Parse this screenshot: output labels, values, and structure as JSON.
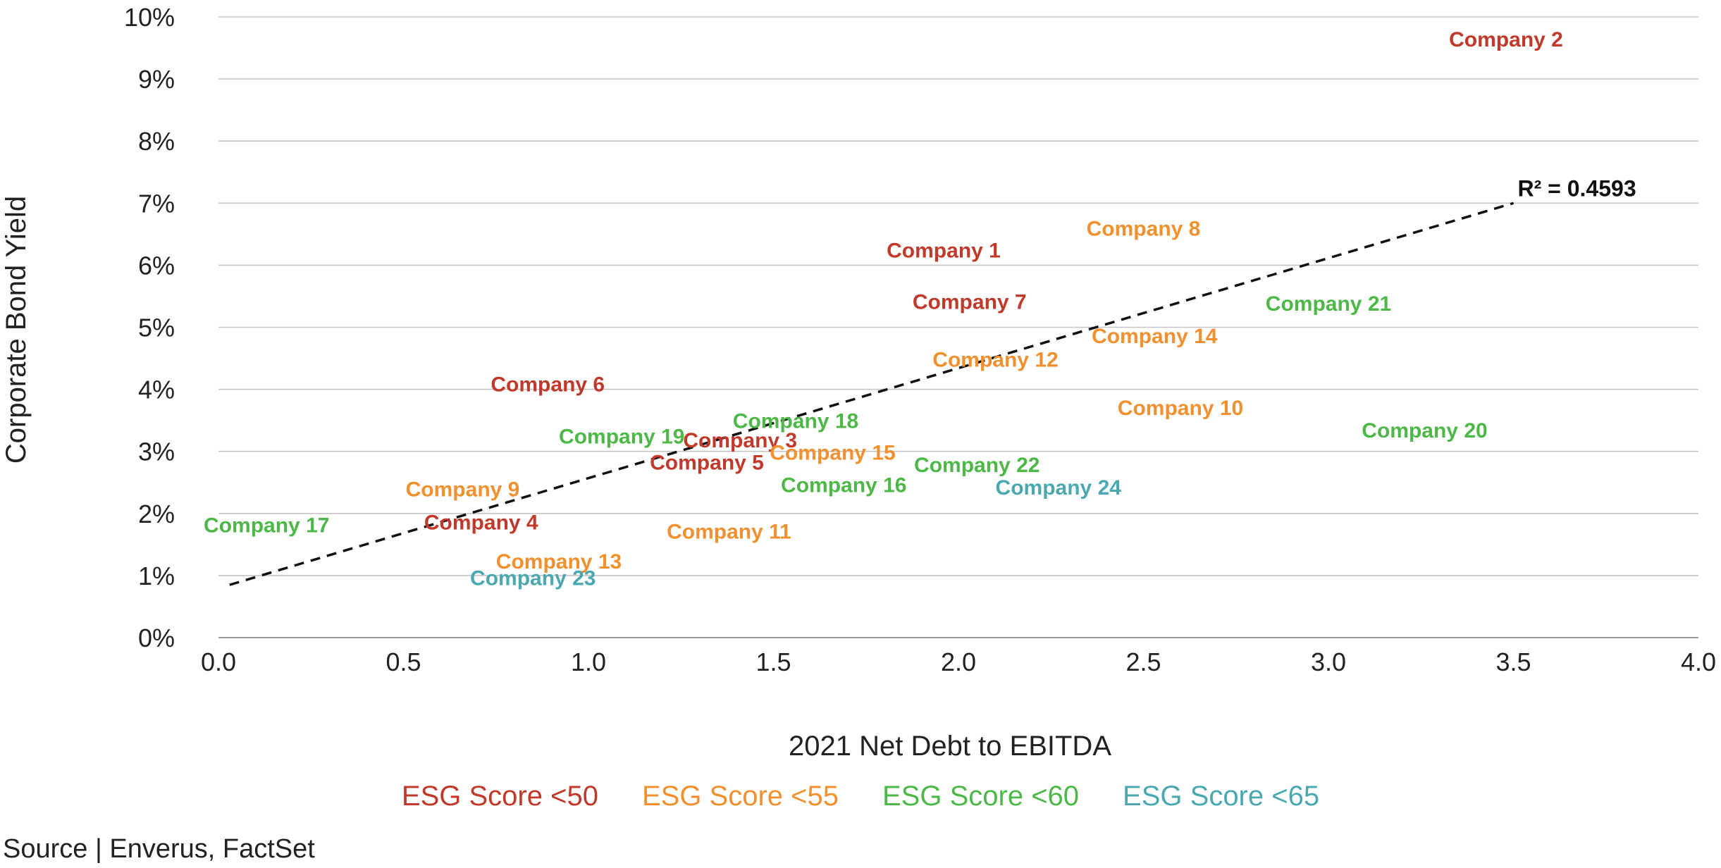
{
  "chart_data": {
    "type": "scatter",
    "xlabel": "2021 Net Debt to EBITDA",
    "ylabel": "Corporate Bond Yield",
    "xlim": [
      0,
      4
    ],
    "ylim": [
      0,
      10
    ],
    "x_ticks": [
      "0.0",
      "0.5",
      "1.0",
      "1.5",
      "2.0",
      "2.5",
      "3.0",
      "3.5",
      "4.0"
    ],
    "y_ticks": [
      "0%",
      "1%",
      "2%",
      "3%",
      "4%",
      "5%",
      "6%",
      "7%",
      "8%",
      "9%",
      "10%"
    ],
    "grid": "horizontal",
    "legend_position": "bottom-center",
    "trendline": {
      "style": "dashed",
      "x": [
        0.03,
        3.5
      ],
      "y": [
        0.85,
        7.0
      ],
      "annotation": "R² = 0.4593"
    },
    "series": [
      {
        "name": "ESG Score <50",
        "color": "#c0392b",
        "points": [
          {
            "label": "Company 2",
            "x": 3.48,
            "y": 9.65
          },
          {
            "label": "Company 1",
            "x": 1.96,
            "y": 6.25
          },
          {
            "label": "Company 7",
            "x": 2.03,
            "y": 5.42
          },
          {
            "label": "Company 6",
            "x": 0.89,
            "y": 4.09
          },
          {
            "label": "Company 3",
            "x": 1.41,
            "y": 3.19
          },
          {
            "label": "Company 5",
            "x": 1.32,
            "y": 2.83
          },
          {
            "label": "Company 4",
            "x": 0.71,
            "y": 1.87
          }
        ]
      },
      {
        "name": "ESG Score <55",
        "color": "#f0902f",
        "points": [
          {
            "label": "Company 8",
            "x": 2.5,
            "y": 6.6
          },
          {
            "label": "Company 14",
            "x": 2.53,
            "y": 4.87
          },
          {
            "label": "Company 12",
            "x": 2.1,
            "y": 4.49
          },
          {
            "label": "Company 10",
            "x": 2.6,
            "y": 3.71
          },
          {
            "label": "Company 15",
            "x": 1.66,
            "y": 2.99
          },
          {
            "label": "Company 9",
            "x": 0.66,
            "y": 2.4
          },
          {
            "label": "Company 11",
            "x": 1.38,
            "y": 1.72
          },
          {
            "label": "Company 13",
            "x": 0.92,
            "y": 1.24
          }
        ]
      },
      {
        "name": "ESG Score <60",
        "color": "#4db848",
        "points": [
          {
            "label": "Company 21",
            "x": 3.0,
            "y": 5.39
          },
          {
            "label": "Company 18",
            "x": 1.56,
            "y": 3.5
          },
          {
            "label": "Company 19",
            "x": 1.09,
            "y": 3.25
          },
          {
            "label": "Company 20",
            "x": 3.26,
            "y": 3.35
          },
          {
            "label": "Company 22",
            "x": 2.05,
            "y": 2.79
          },
          {
            "label": "Company 16",
            "x": 1.69,
            "y": 2.47
          },
          {
            "label": "Company 17",
            "x": 0.13,
            "y": 1.82
          }
        ]
      },
      {
        "name": "ESG Score <65",
        "color": "#4aa8ae",
        "points": [
          {
            "label": "Company 24",
            "x": 2.27,
            "y": 2.43
          },
          {
            "label": "Company 23",
            "x": 0.85,
            "y": 0.97
          }
        ]
      }
    ]
  },
  "footer": {
    "source": "Source | Enverus, FactSet"
  }
}
